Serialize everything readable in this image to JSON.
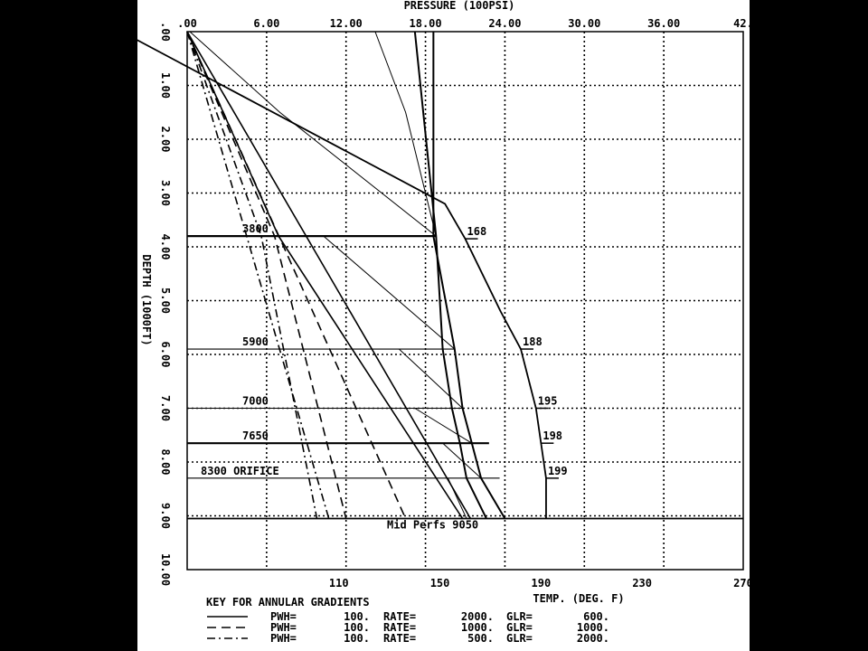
{
  "chart_data": {
    "type": "line",
    "top_axis": {
      "label": "PRESSURE (100PSI)",
      "range": [
        0,
        42
      ],
      "ticks": [
        0,
        6,
        12,
        18,
        24,
        30,
        36,
        42
      ],
      "tick_labels": [
        ".00",
        "6.00",
        "12.00",
        "18.00",
        "24.00",
        "30.00",
        "36.00",
        "42."
      ]
    },
    "left_axis": {
      "label": "DEPTH (1000FT)",
      "range": [
        0,
        10
      ],
      "reversed": true,
      "ticks": [
        0,
        1,
        2,
        3,
        4,
        5,
        6,
        7,
        8,
        9,
        10
      ],
      "tick_labels": [
        ".00",
        "1.00",
        "2.00",
        "3.00",
        "4.00",
        "5.00",
        "6.00",
        "7.00",
        "8.00",
        "9.00",
        "10.00"
      ]
    },
    "bottom_axis": {
      "label": "TEMP. (DEG. F)",
      "range": [
        50,
        270
      ],
      "ticks": [
        110,
        150,
        190,
        230,
        270
      ],
      "tick_labels": [
        "110",
        "150",
        "190",
        "230",
        "270"
      ]
    },
    "grid": true,
    "valve_depths": [
      {
        "label": "3800",
        "depth": 3.8,
        "pressure": 18.8
      },
      {
        "label": "5900",
        "depth": 5.9,
        "pressure": 20.2
      },
      {
        "label": "7000",
        "depth": 7.0,
        "pressure": 20.8
      },
      {
        "label": "7650",
        "depth": 7.65,
        "pressure": 22.8
      },
      {
        "label": "8300 ORIFICE",
        "depth": 8.3,
        "pressure": 23.6
      }
    ],
    "mid_perfs": {
      "label": "Mid Perfs 9050",
      "depth": 9.05
    },
    "temperature_profile": {
      "points": [
        [
          24,
          0
        ],
        [
          152,
          3.2
        ],
        [
          160,
          3.85
        ],
        [
          174,
          5.2
        ],
        [
          182,
          5.9
        ],
        [
          188,
          7.0
        ],
        [
          190,
          7.65
        ],
        [
          192,
          8.3
        ],
        [
          192,
          9.05
        ]
      ],
      "labels": [
        {
          "text": "168",
          "depth": 3.85,
          "temp": 160
        },
        {
          "text": "188",
          "depth": 5.9,
          "temp": 182
        },
        {
          "text": "195",
          "depth": 7.0,
          "temp": 188
        },
        {
          "text": "198",
          "depth": 7.65,
          "temp": 190
        },
        {
          "text": "199",
          "depth": 8.3,
          "temp": 192
        }
      ]
    },
    "pressure_traverses": [
      {
        "style": "solid",
        "heavy": true,
        "points": [
          [
            18.6,
            0
          ],
          [
            18.6,
            3.8
          ],
          [
            20.2,
            5.9
          ],
          [
            20.8,
            7.0
          ],
          [
            21.5,
            7.65
          ],
          [
            22.2,
            8.3
          ],
          [
            24.0,
            9.05
          ]
        ]
      },
      {
        "style": "solid",
        "heavy": true,
        "points": [
          [
            17.2,
            0
          ],
          [
            18.8,
            3.8
          ],
          [
            19.3,
            5.9
          ],
          [
            20.0,
            7.0
          ],
          [
            20.6,
            7.65
          ],
          [
            21.1,
            8.3
          ],
          [
            22.6,
            9.05
          ]
        ]
      },
      {
        "style": "solid",
        "heavy": false,
        "points": [
          [
            14.2,
            0
          ],
          [
            16.5,
            1.5
          ],
          [
            18.8,
            3.8
          ]
        ]
      },
      {
        "style": "solid",
        "heavy": false,
        "points": [
          [
            0.2,
            0
          ],
          [
            7.0,
            1.5
          ],
          [
            18.8,
            3.8
          ]
        ]
      },
      {
        "style": "solid",
        "heavy": false,
        "points": [
          [
            10.3,
            3.8
          ],
          [
            20.2,
            5.9
          ]
        ]
      },
      {
        "style": "solid",
        "heavy": false,
        "points": [
          [
            16.0,
            5.9
          ],
          [
            20.8,
            7.0
          ]
        ]
      },
      {
        "style": "solid",
        "heavy": false,
        "points": [
          [
            17.2,
            7.0
          ],
          [
            21.5,
            7.65
          ]
        ]
      },
      {
        "style": "solid",
        "heavy": false,
        "points": [
          [
            19.3,
            7.65
          ],
          [
            22.2,
            8.3
          ]
        ]
      },
      {
        "style": "solid",
        "heavy": false,
        "points": [
          [
            19.7,
            8.3
          ],
          [
            21.1,
            9.05
          ]
        ]
      }
    ],
    "annular_gradients": [
      {
        "style": "solid",
        "points": [
          [
            0,
            0
          ],
          [
            21.4,
            9.05
          ]
        ]
      },
      {
        "style": "dash",
        "points": [
          [
            0,
            0
          ],
          [
            16.5,
            9.05
          ]
        ]
      },
      {
        "style": "dashdot",
        "points": [
          [
            0,
            0
          ],
          [
            10.7,
            9.05
          ]
        ]
      },
      {
        "style": "dash",
        "points": [
          [
            0,
            0
          ],
          [
            6.6,
            3.8
          ],
          [
            12.0,
            9.05
          ]
        ]
      },
      {
        "style": "dashdot",
        "points": [
          [
            0,
            0
          ],
          [
            5.6,
            3.8
          ],
          [
            9.8,
            9.05
          ]
        ]
      },
      {
        "style": "solid",
        "points": [
          [
            0,
            0
          ],
          [
            6.9,
            3.8
          ],
          [
            20.8,
            9.05
          ]
        ]
      }
    ],
    "key": {
      "title": "KEY FOR ANNULAR GRADIENTS",
      "entries": [
        {
          "style": "solid",
          "pwh_label": "PWH=",
          "pwh": "100.",
          "rate_label": "RATE=",
          "rate": "2000.",
          "glr_label": "GLR=",
          "glr": "600."
        },
        {
          "style": "dash",
          "pwh_label": "PWH=",
          "pwh": "100.",
          "rate_label": "RATE=",
          "rate": "1000.",
          "glr_label": "GLR=",
          "glr": "1000."
        },
        {
          "style": "dashdot",
          "pwh_label": "PWH=",
          "pwh": "100.",
          "rate_label": "RATE=",
          "rate": "500.",
          "glr_label": "GLR=",
          "glr": "2000."
        }
      ]
    }
  }
}
